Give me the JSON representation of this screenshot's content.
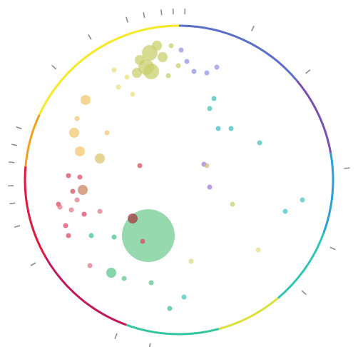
{
  "palette": {
    "ring_stops": [
      "#e2183c",
      "#f2a11f",
      "#f4e924",
      "#5b6fc9",
      "#7a4fb3",
      "#2a9fd8",
      "#2fc6b7",
      "#d8e13b",
      "#33c4a0",
      "#c2185b"
    ],
    "tick_color": "#8c8c8c",
    "background": "#fefefe"
  },
  "diagram": {
    "type": "radial-bubble-plot",
    "tick_count": 16,
    "bubbles": [
      {
        "hue": "olive-yellow",
        "color": "#c7cf6a",
        "size": 3
      },
      {
        "hue": "olive-yellow",
        "color": "#c7cf6a",
        "size": 2
      },
      {
        "hue": "olive-yellow",
        "color": "#c7cf6a",
        "size": 3
      },
      {
        "hue": "olive-yellow",
        "color": "#c7cf6a",
        "size": 2
      },
      {
        "hue": "olive-yellow",
        "color": "#c7cf6a",
        "size": 1
      },
      {
        "hue": "olive-yellow",
        "color": "#c7cf6a",
        "size": 2
      },
      {
        "hue": "olive-yellow",
        "color": "#c7cf6a",
        "size": 1
      },
      {
        "hue": "olive-yellow",
        "color": "#c7cf6a",
        "size": 3
      },
      {
        "hue": "olive-yellow",
        "color": "#c7cf6a",
        "size": 2
      },
      {
        "hue": "olive-yellow",
        "color": "#c7cf6a",
        "size": 1
      },
      {
        "hue": "yellow",
        "color": "#e9e27a",
        "size": 1
      },
      {
        "hue": "yellow",
        "color": "#e9e27a",
        "size": 1
      },
      {
        "hue": "yellow",
        "color": "#e9e27a",
        "size": 1
      },
      {
        "hue": "yellow",
        "color": "#e9e27a",
        "size": 1
      },
      {
        "hue": "blue-violet",
        "color": "#8f8fe0",
        "size": 1
      },
      {
        "hue": "blue-violet",
        "color": "#8f8fe0",
        "size": 1
      },
      {
        "hue": "blue-violet",
        "color": "#8f8fe0",
        "size": 1
      },
      {
        "hue": "blue-violet",
        "color": "#8f8fe0",
        "size": 1
      },
      {
        "hue": "blue-violet",
        "color": "#8f8fe0",
        "size": 1
      },
      {
        "hue": "orange-yellow",
        "color": "#f2c46a",
        "size": 2
      },
      {
        "hue": "orange-yellow",
        "color": "#f2c46a",
        "size": 2
      },
      {
        "hue": "orange-yellow",
        "color": "#f2c46a",
        "size": 2
      },
      {
        "hue": "orange-yellow",
        "color": "#f2c46a",
        "size": 1
      },
      {
        "hue": "orange-yellow",
        "color": "#f2c46a",
        "size": 1
      },
      {
        "hue": "tan",
        "color": "#dcc46f",
        "size": 2
      },
      {
        "hue": "red",
        "color": "#d9455f",
        "size": 1
      },
      {
        "hue": "red",
        "color": "#d9455f",
        "size": 1
      },
      {
        "hue": "red",
        "color": "#d9455f",
        "size": 1
      },
      {
        "hue": "red",
        "color": "#d9455f",
        "size": 1
      },
      {
        "hue": "red",
        "color": "#d9455f",
        "size": 1
      },
      {
        "hue": "red",
        "color": "#d9455f",
        "size": 1
      },
      {
        "hue": "red",
        "color": "#d9455f",
        "size": 1
      },
      {
        "hue": "pink",
        "color": "#e7738a",
        "size": 1
      },
      {
        "hue": "pink",
        "color": "#e7738a",
        "size": 1
      },
      {
        "hue": "pink",
        "color": "#e7738a",
        "size": 1
      },
      {
        "hue": "pink",
        "color": "#e7738a",
        "size": 1
      },
      {
        "hue": "pink",
        "color": "#e7738a",
        "size": 1
      },
      {
        "hue": "brown",
        "color": "#c9805a",
        "size": 2
      },
      {
        "hue": "green",
        "color": "#52c07a",
        "size": 5
      },
      {
        "hue": "dark-red",
        "color": "#a8323e",
        "size": 2
      },
      {
        "hue": "green",
        "color": "#58c489",
        "size": 2
      },
      {
        "hue": "green",
        "color": "#58c489",
        "size": 1
      },
      {
        "hue": "green",
        "color": "#58c489",
        "size": 1
      },
      {
        "hue": "teal",
        "color": "#3fc1c0",
        "size": 1
      },
      {
        "hue": "teal",
        "color": "#3fc1c0",
        "size": 1
      },
      {
        "hue": "teal",
        "color": "#3fc1c0",
        "size": 1
      },
      {
        "hue": "teal",
        "color": "#3fc1c0",
        "size": 1
      },
      {
        "hue": "teal",
        "color": "#3fc1c0",
        "size": 1
      },
      {
        "hue": "teal",
        "color": "#3fc1c0",
        "size": 1
      },
      {
        "hue": "teal",
        "color": "#3fc1c0",
        "size": 1
      },
      {
        "hue": "teal",
        "color": "#3fc1c0",
        "size": 1
      },
      {
        "hue": "yellow-green",
        "color": "#c7cf6a",
        "size": 1
      },
      {
        "hue": "yellow-green",
        "color": "#d8d97e",
        "size": 1
      },
      {
        "hue": "yellow-green",
        "color": "#e2e07e",
        "size": 1
      },
      {
        "hue": "violet",
        "color": "#9a7ad9",
        "size": 1
      },
      {
        "hue": "violet",
        "color": "#9a7ad9",
        "size": 1
      },
      {
        "hue": "olive",
        "color": "#c8c27b",
        "size": 1
      },
      {
        "hue": "sea-green",
        "color": "#3fbf8a",
        "size": 1
      },
      {
        "hue": "sea-green",
        "color": "#3fbf8a",
        "size": 1
      },
      {
        "hue": "sea-green",
        "color": "#3fbf8a",
        "size": 1
      },
      {
        "hue": "rose",
        "color": "#d9455f",
        "size": 1
      },
      {
        "hue": "rose",
        "color": "#d9455f",
        "size": 1
      }
    ]
  }
}
